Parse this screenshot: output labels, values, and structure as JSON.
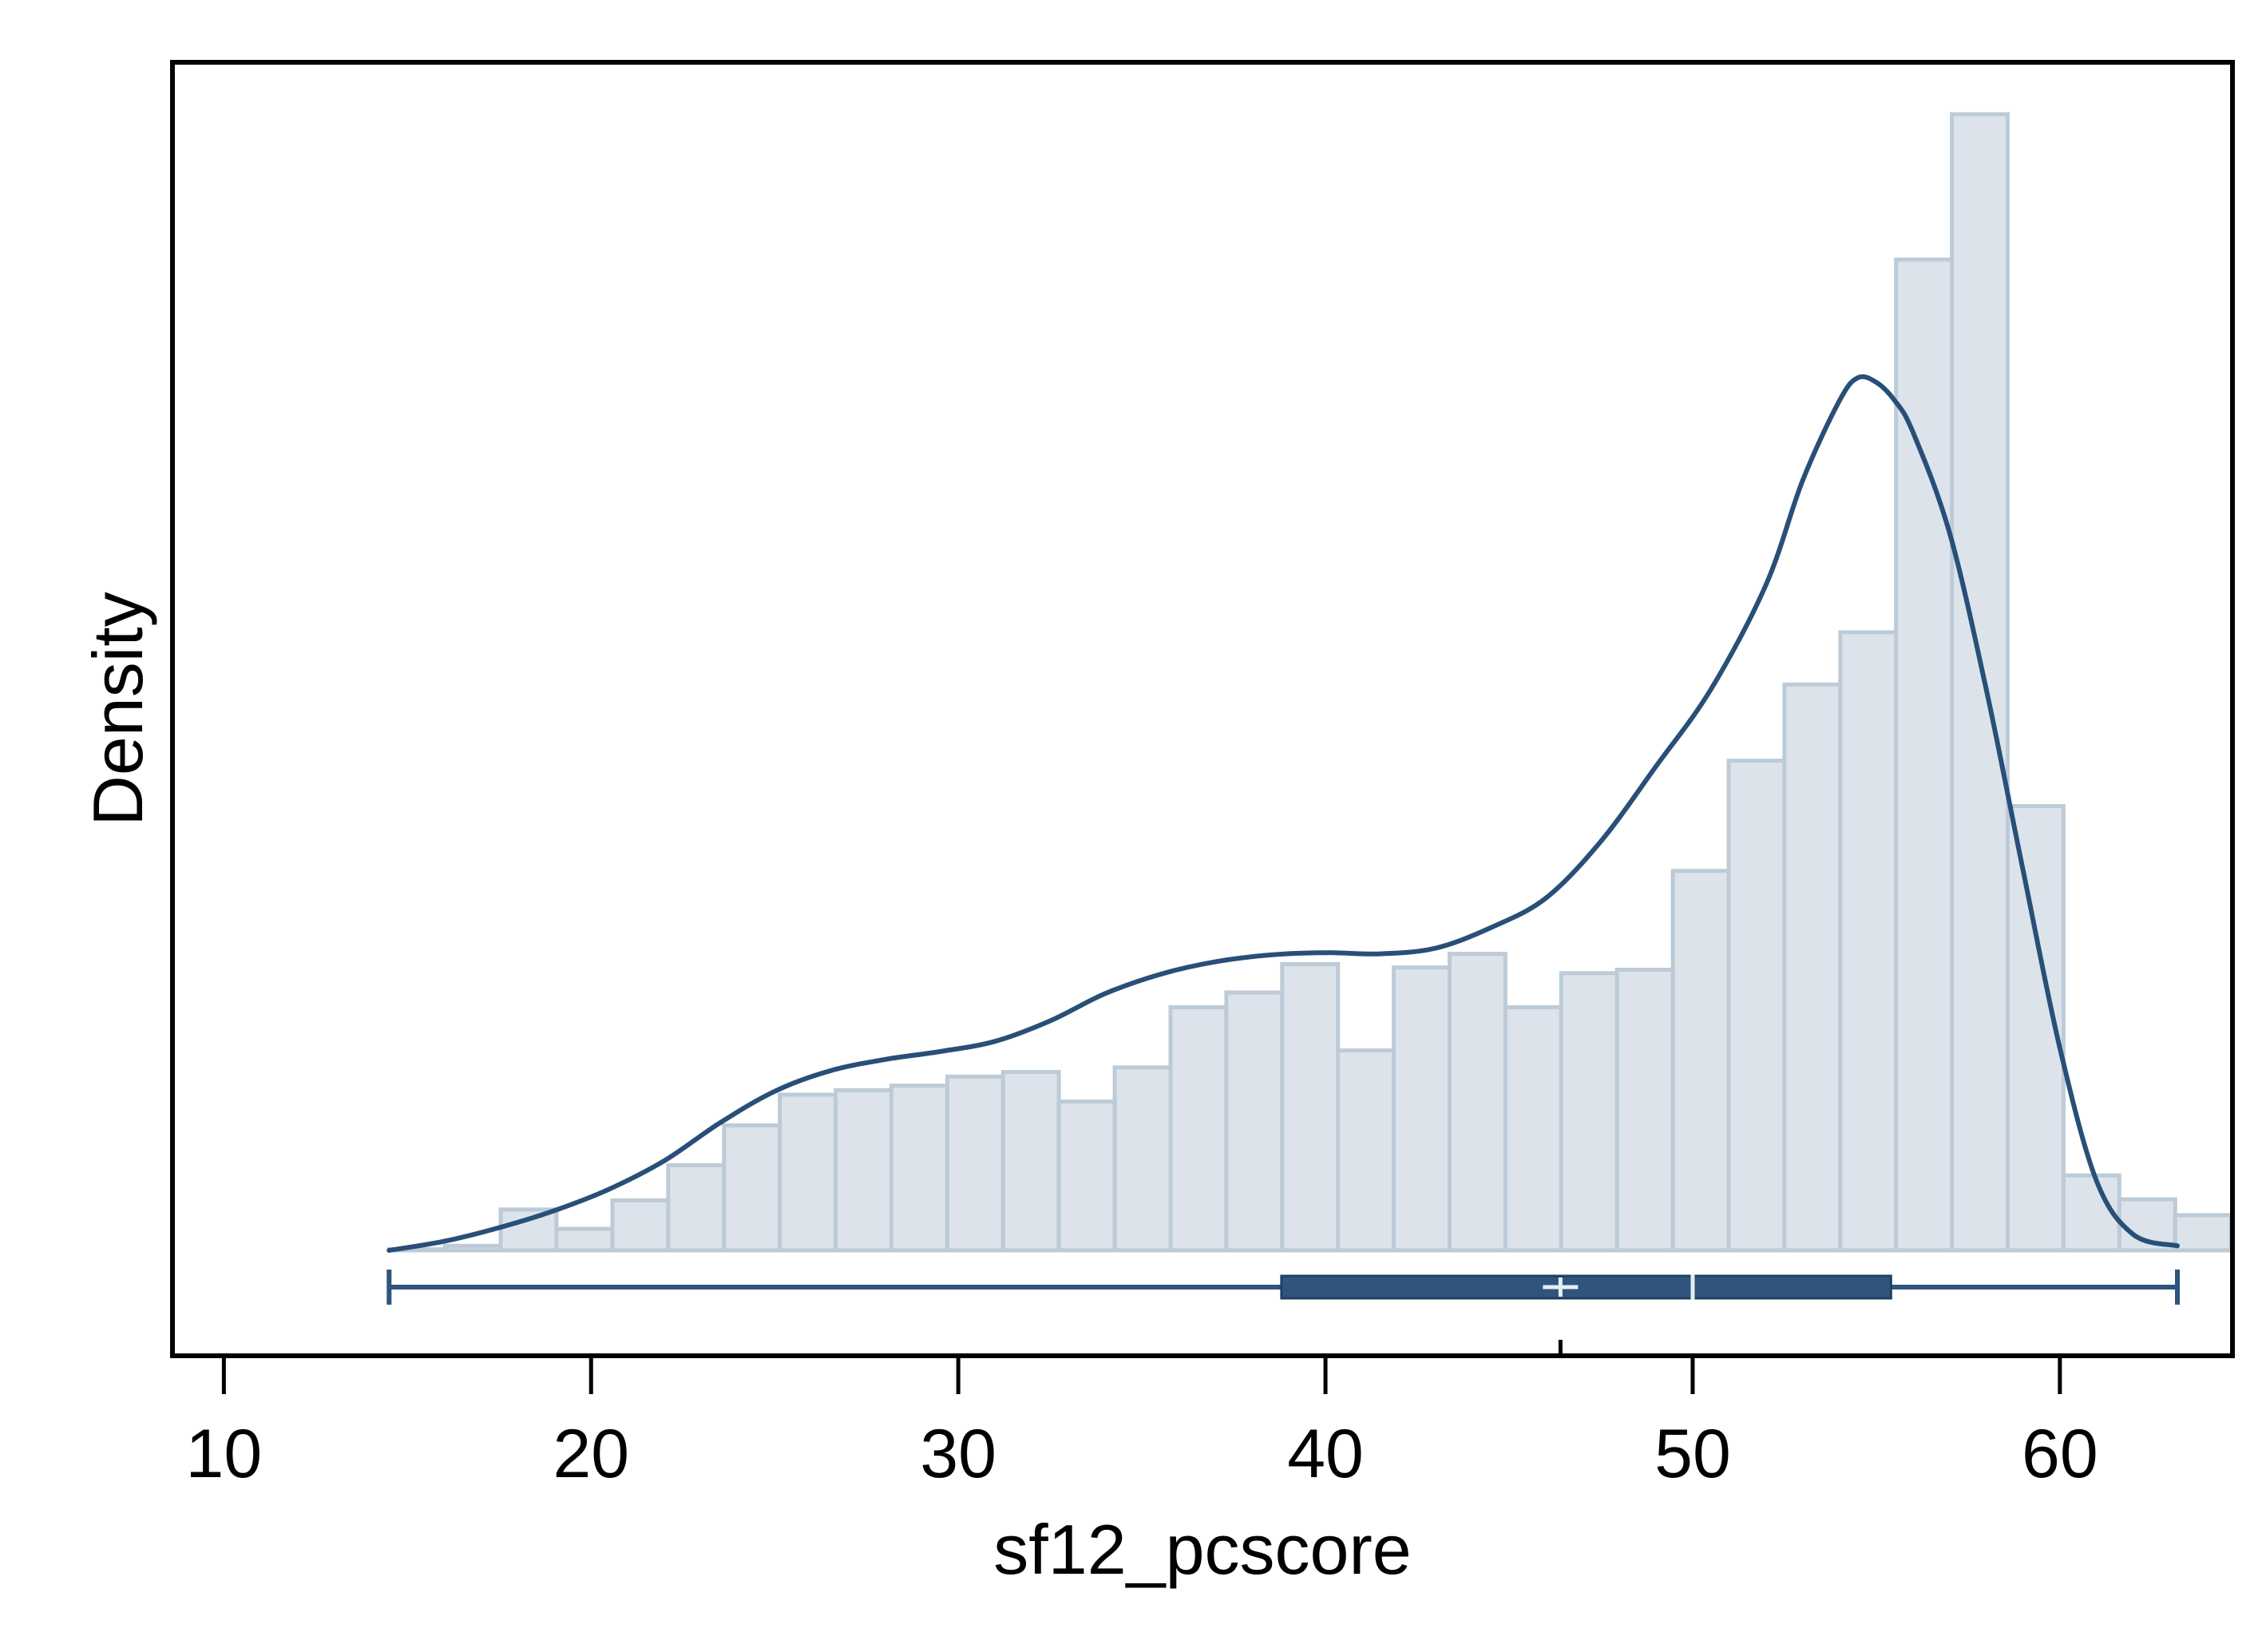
{
  "chart_data": {
    "type": "histogram",
    "title": "",
    "xlabel": "sf12_pcscore",
    "ylabel": "Density",
    "xlim": [
      8.6,
      64.7
    ],
    "x_ticks": [
      10,
      20,
      30,
      40,
      50,
      60
    ],
    "x_tick_labels": [
      "10",
      "20",
      "30",
      "40",
      "50",
      "60"
    ],
    "y_ticks_shown": false,
    "grid": false,
    "legend": "none",
    "colors": {
      "bar_fill": "#dce3ea",
      "bar_stroke": "#bccbd7",
      "density_line": "#284f77",
      "boxplot": "#2f557c",
      "boxplot_markers": "#e6edf3",
      "axis": "#000000"
    },
    "histogram": {
      "bin_start": 14.5,
      "bin_width": 1.52,
      "relative_heights": [
        0.001,
        0.004,
        0.036,
        0.019,
        0.044,
        0.075,
        0.11,
        0.137,
        0.141,
        0.145,
        0.153,
        0.157,
        0.131,
        0.161,
        0.214,
        0.227,
        0.252,
        0.176,
        0.249,
        0.261,
        0.214,
        0.244,
        0.247,
        0.334,
        0.431,
        0.498,
        0.544,
        0.872,
        1.0,
        0.391,
        0.066,
        0.045,
        0.031
      ]
    },
    "density_curve": {
      "x": [
        14.5,
        16,
        17.5,
        19,
        20.5,
        22,
        23.5,
        25,
        26.5,
        28,
        29.5,
        31,
        32.5,
        34,
        35.5,
        37,
        38.5,
        40,
        41.5,
        43,
        44.5,
        46,
        47.5,
        49,
        50.5,
        52,
        53,
        54,
        54.5,
        55,
        55.5,
        56,
        57,
        58,
        59,
        60,
        61,
        62,
        63.2
      ],
      "y": [
        0.0,
        0.008,
        0.02,
        0.035,
        0.054,
        0.079,
        0.112,
        0.14,
        0.158,
        0.168,
        0.175,
        0.184,
        0.202,
        0.226,
        0.243,
        0.254,
        0.26,
        0.262,
        0.261,
        0.266,
        0.284,
        0.31,
        0.36,
        0.426,
        0.494,
        0.586,
        0.678,
        0.748,
        0.768,
        0.764,
        0.748,
        0.72,
        0.631,
        0.493,
        0.334,
        0.178,
        0.061,
        0.014,
        0.004
      ]
    },
    "boxplot": {
      "min": 14.5,
      "q1": 38.8,
      "median": 50.0,
      "mean": 46.4,
      "q3": 55.4,
      "max": 63.2
    }
  }
}
